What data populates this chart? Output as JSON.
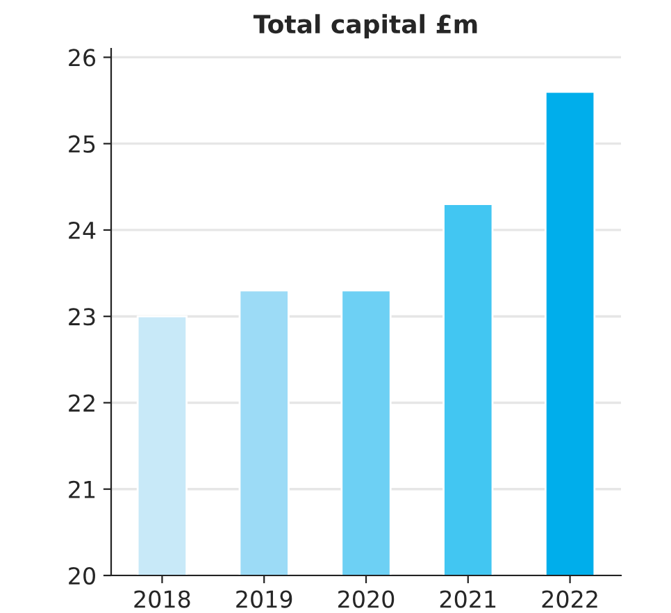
{
  "chart_data": {
    "type": "bar",
    "title": "Total capital £m",
    "categories": [
      "2018",
      "2019",
      "2020",
      "2021",
      "2022"
    ],
    "values": [
      23.0,
      23.3,
      23.3,
      24.3,
      25.6
    ],
    "colors": [
      "#c8e9f8",
      "#9cdbf6",
      "#6dd0f4",
      "#42c6f2",
      "#00aeeb"
    ],
    "ylim": [
      20,
      26.1
    ],
    "yticks": [
      20,
      21,
      22,
      23,
      24,
      25,
      26
    ],
    "grid": "y"
  }
}
